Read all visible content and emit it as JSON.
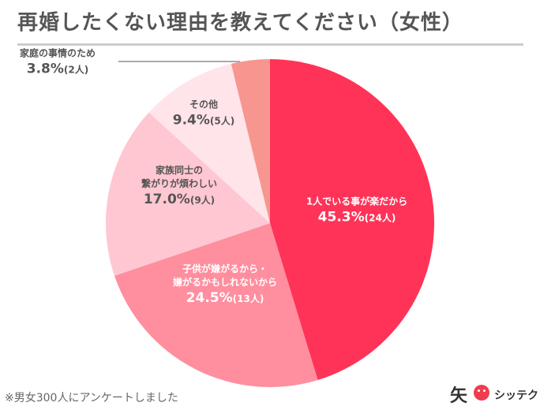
{
  "title": "再婚したくない理由を教えてください（女性）",
  "footnote": "※男女300人にアンケートしました",
  "brand": {
    "mark": "矢",
    "name": "シッテク"
  },
  "chart_data": {
    "type": "pie",
    "title": "再婚したくない理由を教えてください（女性）",
    "start_angle_deg": 0,
    "direction": "clockwise",
    "slices": [
      {
        "label": [
          "1人でいる事が楽だから"
        ],
        "percent": 45.3,
        "count": 24,
        "value_text": "45.3%",
        "count_text": "(24人)",
        "color": "#ff3358",
        "label_color": "#ffffff"
      },
      {
        "label": [
          "子供が嫌がるから・",
          "嫌がるかもしれないから"
        ],
        "percent": 24.5,
        "count": 13,
        "value_text": "24.5%",
        "count_text": "(13人)",
        "color": "#ff8e9f",
        "label_color": "#ffffff"
      },
      {
        "label": [
          "家族同士の",
          "繋がりが煩わしい"
        ],
        "percent": 17.0,
        "count": 9,
        "value_text": "17.0%",
        "count_text": "(9人)",
        "color": "#ffc7d1",
        "label_color": "#555555"
      },
      {
        "label": [
          "その他"
        ],
        "percent": 9.4,
        "count": 5,
        "value_text": "9.4%",
        "count_text": "(5人)",
        "color": "#ffe4ea",
        "label_color": "#555555"
      },
      {
        "label": [
          "家庭の事情のため"
        ],
        "percent": 3.8,
        "count": 2,
        "value_text": "3.8%",
        "count_text": "(2人)",
        "color": "#f6968f",
        "label_color": "#555555",
        "callout": true
      }
    ]
  }
}
